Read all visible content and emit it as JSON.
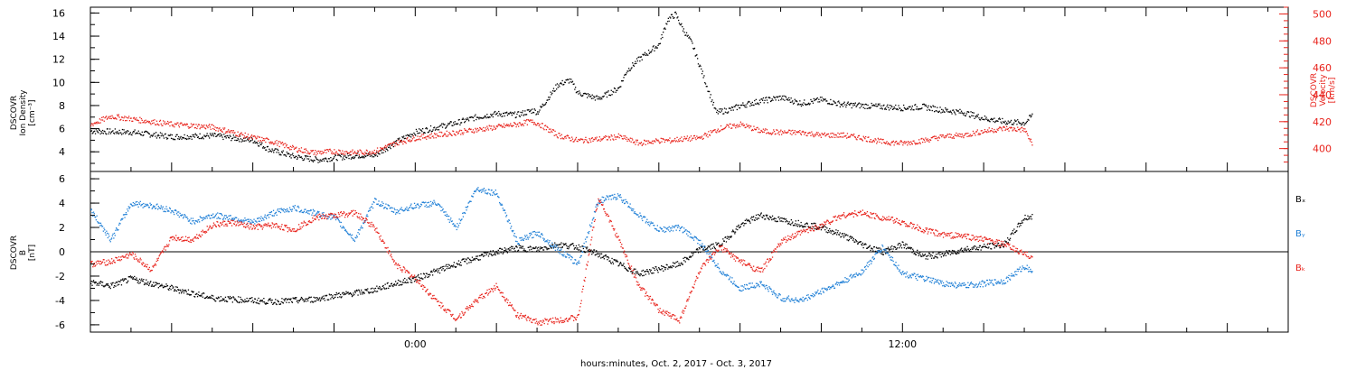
{
  "figure": {
    "xlabel": "hours:minutes, Oct.  2, 2017 - Oct.  3, 2017",
    "x_ticks": [
      "0:00",
      "12:00"
    ]
  },
  "colors": {
    "density": "#000000",
    "velocity": "#e8231c",
    "bx": "#000000",
    "by": "#1f7fd6",
    "bz": "#e8231c",
    "axis": "#000000"
  },
  "chart_data": [
    {
      "type": "scatter",
      "panel": "top",
      "x_unit": "hours since 2017-10-02 00:00",
      "xlim": [
        -8,
        21.5
      ],
      "left_axis": {
        "label": [
          "DSCOVR",
          "Ion Density",
          "[cm⁻³]"
        ],
        "ylim": [
          2.3,
          16.5
        ],
        "ticks": [
          4,
          6,
          8,
          10,
          12,
          14,
          16
        ]
      },
      "right_axis": {
        "label": [
          "DSCOVR",
          "Velocity",
          "[km/s]"
        ],
        "ylim": [
          383,
          505
        ],
        "ticks": [
          400,
          420,
          440,
          460,
          480,
          500
        ]
      },
      "series": [
        {
          "axis": "left",
          "color_key": "density",
          "x": [
            -8,
            -7,
            -6,
            -5,
            -4,
            -3.6,
            -3,
            -2.4,
            -2,
            -1.4,
            -1,
            -0.5,
            0,
            0.5,
            1,
            1.5,
            2,
            2.5,
            2.9,
            3,
            3.5,
            3.8,
            4,
            4.5,
            5,
            5.2,
            5.5,
            6,
            6.2,
            6.4,
            6.6,
            6.8,
            7,
            7.4,
            7.8,
            8,
            8.5,
            9,
            9.5,
            10,
            10.5,
            11,
            11.5,
            12,
            12.5,
            13,
            13.5,
            14,
            14.5,
            15,
            15.2
          ],
          "y": [
            5.8,
            5.7,
            5.3,
            5.4,
            5.0,
            4.2,
            3.6,
            3.3,
            3.5,
            3.7,
            3.7,
            4.8,
            5.7,
            6.1,
            6.5,
            7.0,
            7.3,
            7.2,
            7.6,
            7.4,
            9.8,
            10.2,
            9.1,
            8.6,
            9.5,
            11.0,
            12.0,
            13.3,
            15.4,
            15.9,
            14.5,
            13.4,
            11.4,
            7.4,
            7.7,
            8.0,
            8.4,
            8.7,
            8.2,
            8.5,
            8.1,
            8.0,
            7.9,
            7.8,
            7.9,
            7.6,
            7.4,
            6.9,
            6.6,
            6.5,
            7.2
          ]
        },
        {
          "axis": "right",
          "color_key": "velocity",
          "x": [
            -8,
            -7.5,
            -7,
            -6,
            -5,
            -4.5,
            -4,
            -3.5,
            -3,
            -2.5,
            -2,
            -1.5,
            -1,
            -0.5,
            0,
            0.5,
            1,
            1.5,
            2,
            2.5,
            2.8,
            3,
            3.5,
            4,
            4.5,
            5,
            5.5,
            6,
            6.3,
            6.5,
            7,
            7.5,
            8,
            8.5,
            9,
            9.5,
            10,
            10.5,
            11,
            11.5,
            12,
            12.5,
            13,
            13.5,
            14,
            14.5,
            15,
            15.2
          ],
          "y": [
            418,
            424,
            422,
            418,
            416,
            412,
            408,
            405,
            400,
            397,
            398,
            397,
            398,
            404,
            408,
            410,
            412,
            414,
            416,
            418,
            420,
            419,
            410,
            406,
            407,
            409,
            404,
            406,
            406,
            407,
            408,
            415,
            418,
            413,
            412,
            412,
            410,
            410,
            408,
            405,
            404,
            406,
            409,
            410,
            413,
            415,
            414,
            402
          ]
        }
      ]
    },
    {
      "type": "scatter",
      "panel": "bottom",
      "x_unit": "hours since 2017-10-02 00:00",
      "xlim": [
        -8,
        21.5
      ],
      "y_axis": {
        "label": [
          "DSCOVR",
          "B",
          "[nT]"
        ],
        "ylim": [
          -6.6,
          6.6
        ],
        "ticks": [
          -6,
          -4,
          -2,
          0,
          2,
          4,
          6
        ]
      },
      "zero_line": true,
      "legend": [
        "Bₓ",
        "Bᵧ",
        "Bₖ"
      ],
      "legend_placement": "right",
      "series": [
        {
          "name": "Bx",
          "color_key": "bx",
          "x": [
            -8,
            -7.5,
            -7,
            -6.5,
            -6,
            -5.5,
            -5,
            -4.5,
            -4,
            -3.5,
            -3,
            -2.5,
            -2,
            -1.5,
            -1,
            -0.5,
            0,
            0.5,
            1,
            1.5,
            2,
            2.5,
            3,
            3.5,
            4,
            4.5,
            5,
            5.5,
            6,
            6.5,
            7,
            7.5,
            8,
            8.5,
            9,
            9.5,
            10,
            10.5,
            11,
            11.5,
            12,
            12.5,
            13,
            13.5,
            14,
            14.5,
            15,
            15.2
          ],
          "y": [
            -2.5,
            -2.8,
            -2.2,
            -2.6,
            -3.0,
            -3.4,
            -3.8,
            -3.9,
            -4.0,
            -4.1,
            -4.0,
            -3.9,
            -3.6,
            -3.4,
            -3.1,
            -2.6,
            -2.2,
            -1.6,
            -1.0,
            -0.5,
            0.0,
            0.3,
            0.2,
            0.6,
            0.4,
            -0.2,
            -1.0,
            -1.8,
            -1.4,
            -1.0,
            0.2,
            0.6,
            2.2,
            3.0,
            2.6,
            2.3,
            2.0,
            1.4,
            0.6,
            0.0,
            0.6,
            -0.4,
            -0.2,
            0.2,
            0.4,
            0.6,
            2.8,
            2.9
          ]
        },
        {
          "name": "By",
          "color_key": "by",
          "x": [
            -8,
            -7.5,
            -7,
            -6.5,
            -6,
            -5.5,
            -5,
            -4.5,
            -4,
            -3.5,
            -3,
            -2.5,
            -2,
            -1.5,
            -1,
            -0.5,
            0,
            0.5,
            1,
            1.5,
            2,
            2.5,
            3,
            3.5,
            4,
            4.5,
            5,
            5.5,
            6,
            6.5,
            7,
            7.5,
            8,
            8.5,
            9,
            9.5,
            10,
            10.5,
            11,
            11.5,
            12,
            12.5,
            13,
            13.5,
            14,
            14.5,
            15,
            15.2
          ],
          "y": [
            3.4,
            1.0,
            4.0,
            3.8,
            3.4,
            2.5,
            3.0,
            2.8,
            2.4,
            3.2,
            3.6,
            3.2,
            2.8,
            1.0,
            4.2,
            3.3,
            3.8,
            4.0,
            2.0,
            5.2,
            4.8,
            0.8,
            1.6,
            0.2,
            -1.0,
            4.2,
            4.6,
            3.0,
            1.8,
            2.0,
            0.8,
            -1.5,
            -3.0,
            -2.6,
            -3.8,
            -4.0,
            -3.2,
            -2.5,
            -1.6,
            0.4,
            -1.8,
            -2.2,
            -2.6,
            -2.8,
            -2.6,
            -2.4,
            -1.2,
            -1.6
          ]
        },
        {
          "name": "Bz",
          "color_key": "bz",
          "x": [
            -8,
            -7.5,
            -7,
            -6.5,
            -6,
            -5.5,
            -5,
            -4.5,
            -4,
            -3.5,
            -3,
            -2.5,
            -2,
            -1.5,
            -1,
            -0.5,
            0,
            0.5,
            1,
            1.5,
            2,
            2.5,
            3,
            3.5,
            4,
            4.5,
            5,
            5.5,
            6,
            6.5,
            7,
            7.5,
            8,
            8.5,
            9,
            9.5,
            10,
            10.5,
            11,
            11.5,
            12,
            12.5,
            13,
            13.5,
            14,
            14.5,
            15,
            15.2
          ],
          "y": [
            -1.0,
            -0.8,
            -0.2,
            -1.5,
            1.2,
            1.0,
            2.2,
            2.4,
            2.0,
            2.2,
            1.8,
            2.8,
            3.0,
            3.2,
            2.0,
            -1.0,
            -2.2,
            -4.0,
            -5.5,
            -4.0,
            -2.8,
            -5.2,
            -5.8,
            -5.6,
            -5.4,
            4.5,
            1.0,
            -2.8,
            -4.8,
            -5.6,
            -1.5,
            0.4,
            -0.8,
            -1.6,
            0.8,
            1.6,
            2.2,
            3.0,
            3.2,
            2.8,
            2.4,
            1.8,
            1.4,
            1.3,
            1.0,
            0.6,
            -0.2,
            -0.4
          ]
        }
      ]
    }
  ]
}
